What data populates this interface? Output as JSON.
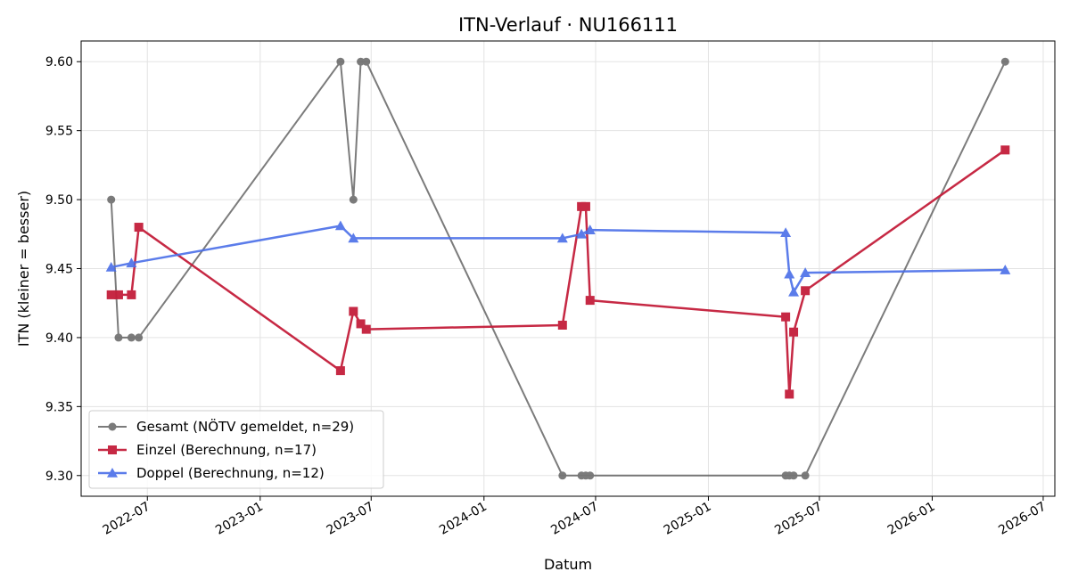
{
  "chart_data": {
    "type": "line",
    "title": "ITN-Verlauf · NU166111",
    "xlabel": "Datum",
    "ylabel": "ITN  (kleiner = besser)",
    "x_type": "date",
    "xlim": [
      "2022-03-15",
      "2026-07-20"
    ],
    "ylim": [
      9.285,
      9.615
    ],
    "x_ticks": [
      {
        "date": "2022-07-01",
        "label": "2022-07"
      },
      {
        "date": "2023-01-01",
        "label": "2023-01"
      },
      {
        "date": "2023-07-01",
        "label": "2023-07"
      },
      {
        "date": "2024-01-01",
        "label": "2024-01"
      },
      {
        "date": "2024-07-01",
        "label": "2024-07"
      },
      {
        "date": "2025-01-01",
        "label": "2025-01"
      },
      {
        "date": "2025-07-01",
        "label": "2025-07"
      },
      {
        "date": "2026-01-01",
        "label": "2026-01"
      },
      {
        "date": "2026-07-01",
        "label": "2026-07"
      }
    ],
    "y_ticks": [
      {
        "value": 9.3,
        "label": "9.30"
      },
      {
        "value": 9.35,
        "label": "9.35"
      },
      {
        "value": 9.4,
        "label": "9.40"
      },
      {
        "value": 9.45,
        "label": "9.45"
      },
      {
        "value": 9.5,
        "label": "9.50"
      },
      {
        "value": 9.55,
        "label": "9.55"
      },
      {
        "value": 9.6,
        "label": "9.60"
      }
    ],
    "grid": true,
    "legend_position": "bottom-left",
    "series": [
      {
        "name": "Gesamt (NÖTV gemeldet, n=29)",
        "color": "#444444",
        "marker": "circle",
        "points": [
          {
            "x": "2022-05-03",
            "y": 9.5
          },
          {
            "x": "2022-05-15",
            "y": 9.4
          },
          {
            "x": "2022-06-05",
            "y": 9.4
          },
          {
            "x": "2022-06-17",
            "y": 9.4
          },
          {
            "x": "2023-05-12",
            "y": 9.6
          },
          {
            "x": "2023-06-02",
            "y": 9.5
          },
          {
            "x": "2023-06-14",
            "y": 9.6
          },
          {
            "x": "2023-06-23",
            "y": 9.6
          },
          {
            "x": "2024-05-08",
            "y": 9.3
          },
          {
            "x": "2024-06-08",
            "y": 9.3
          },
          {
            "x": "2024-06-15",
            "y": 9.3
          },
          {
            "x": "2024-06-22",
            "y": 9.3
          },
          {
            "x": "2025-05-07",
            "y": 9.3
          },
          {
            "x": "2025-05-13",
            "y": 9.3
          },
          {
            "x": "2025-05-20",
            "y": 9.3
          },
          {
            "x": "2025-06-08",
            "y": 9.3
          },
          {
            "x": "2026-04-30",
            "y": 9.6
          }
        ]
      },
      {
        "name": "Einzel (Berechnung, n=17)",
        "color": "#c41e3a",
        "marker": "square",
        "points": [
          {
            "x": "2022-05-03",
            "y": 9.431
          },
          {
            "x": "2022-05-15",
            "y": 9.431
          },
          {
            "x": "2022-06-05",
            "y": 9.431
          },
          {
            "x": "2022-06-17",
            "y": 9.48
          },
          {
            "x": "2023-05-12",
            "y": 9.376
          },
          {
            "x": "2023-06-02",
            "y": 9.419
          },
          {
            "x": "2023-06-14",
            "y": 9.41
          },
          {
            "x": "2023-06-23",
            "y": 9.406
          },
          {
            "x": "2024-05-08",
            "y": 9.409
          },
          {
            "x": "2024-06-08",
            "y": 9.495
          },
          {
            "x": "2024-06-15",
            "y": 9.495
          },
          {
            "x": "2024-06-22",
            "y": 9.427
          },
          {
            "x": "2025-05-07",
            "y": 9.415
          },
          {
            "x": "2025-05-13",
            "y": 9.359
          },
          {
            "x": "2025-05-20",
            "y": 9.404
          },
          {
            "x": "2025-06-08",
            "y": 9.434
          },
          {
            "x": "2026-04-30",
            "y": 9.536
          }
        ]
      },
      {
        "name": "Doppel (Berechnung, n=12)",
        "color": "#4a6ee8",
        "marker": "triangle",
        "points": [
          {
            "x": "2022-05-03",
            "y": 9.451
          },
          {
            "x": "2022-06-05",
            "y": 9.454
          },
          {
            "x": "2023-05-12",
            "y": 9.481
          },
          {
            "x": "2023-06-02",
            "y": 9.472
          },
          {
            "x": "2024-05-08",
            "y": 9.472
          },
          {
            "x": "2024-06-08",
            "y": 9.475
          },
          {
            "x": "2024-06-22",
            "y": 9.478
          },
          {
            "x": "2025-05-07",
            "y": 9.476
          },
          {
            "x": "2025-05-13",
            "y": 9.446
          },
          {
            "x": "2025-05-20",
            "y": 9.433
          },
          {
            "x": "2025-06-08",
            "y": 9.447
          },
          {
            "x": "2026-04-30",
            "y": 9.449
          }
        ]
      }
    ]
  }
}
